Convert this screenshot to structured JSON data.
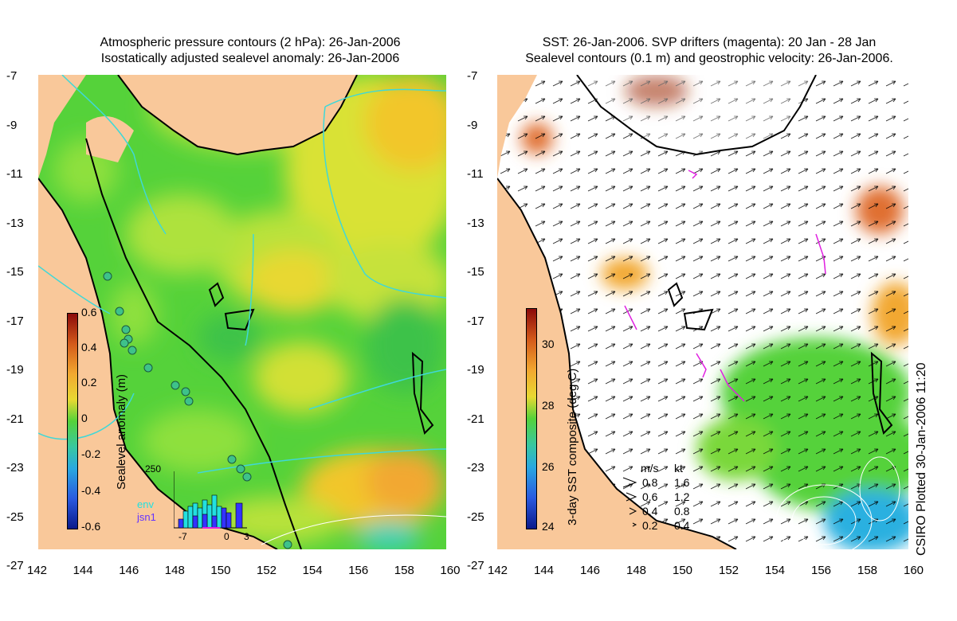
{
  "left_panel": {
    "title_line1": "Atmospheric pressure contours (2 hPa): 26-Jan-2006",
    "title_line2": "Isostatically adjusted sealevel anomaly: 26-Jan-2006",
    "colorbar_label": "Sealevel anomaly (m)",
    "colorbar_ticks": [
      "0.6",
      "0.4",
      "0.2",
      "0",
      "-0.2",
      "-0.4",
      "-0.6"
    ],
    "inset": {
      "ymax_label": "250",
      "x_labels": [
        "-7",
        "0",
        "3"
      ],
      "legend": [
        "env",
        "jsn1"
      ],
      "env_color": "#22e0e0",
      "jsn1_color": "#3333ff"
    }
  },
  "right_panel": {
    "title_line1": "SST: 26-Jan-2006. SVP drifters (magenta): 20 Jan - 28 Jan",
    "title_line2": "Sealevel contours (0.1 m) and geostrophic velocity: 26-Jan-2006.",
    "colorbar_label": "3-day SST composite (deg C)",
    "colorbar_ticks": [
      "30",
      "28",
      "26",
      "24"
    ],
    "velocity_legend": {
      "header_ms": "m/s",
      "header_kt": "kt",
      "rows": [
        {
          "ms": "0.8",
          "kt": "1.6"
        },
        {
          "ms": "0.6",
          "kt": "1.2"
        },
        {
          "ms": "0.4",
          "kt": "0.8"
        },
        {
          "ms": "0.2",
          "kt": "0.4"
        }
      ]
    },
    "credit": "CSIRO Plotted 30-Jan-2006 11:20"
  },
  "axes": {
    "lat_labels": [
      "-7",
      "-9",
      "-11",
      "-13",
      "-15",
      "-17",
      "-19",
      "-21",
      "-23",
      "-25",
      "-27"
    ],
    "lon_labels": [
      "142",
      "144",
      "146",
      "148",
      "150",
      "152",
      "154",
      "156",
      "158",
      "160"
    ]
  },
  "colors": {
    "land": "#f9c89a",
    "ocean_green": "#55d23a",
    "contour_cyan": "#3fd8d8",
    "drifter_magenta": "#e020e0"
  }
}
